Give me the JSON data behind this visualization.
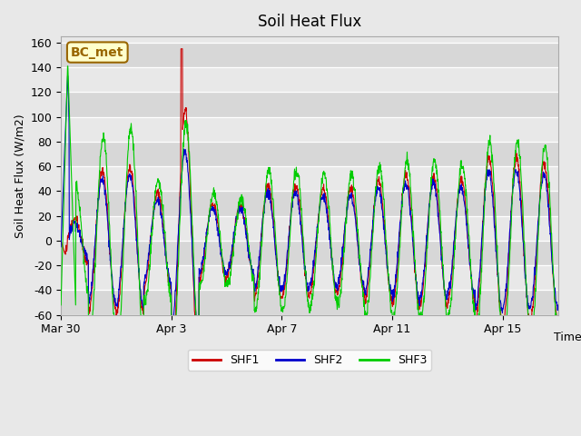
{
  "title": "Soil Heat Flux",
  "xlabel": "Time",
  "ylabel": "Soil Heat Flux (W/m2)",
  "ylim": [
    -60,
    165
  ],
  "yticks": [
    -60,
    -40,
    -20,
    0,
    20,
    40,
    60,
    80,
    100,
    120,
    140,
    160
  ],
  "plot_bg_color": "#e8e8e8",
  "shf1_color": "#cc0000",
  "shf2_color": "#0000cc",
  "shf3_color": "#00cc00",
  "legend_label1": "SHF1",
  "legend_label2": "SHF2",
  "legend_label3": "SHF3",
  "annotation_text": "BC_met",
  "annotation_bg": "#ffffcc",
  "annotation_border": "#996600",
  "n_days": 18,
  "points_per_day": 96,
  "xtick_positions": [
    0,
    4,
    8,
    12,
    16
  ],
  "xtick_labels": [
    "Mar 30",
    "Apr 3",
    "Apr 7",
    "Apr 11",
    "Apr 15"
  ]
}
